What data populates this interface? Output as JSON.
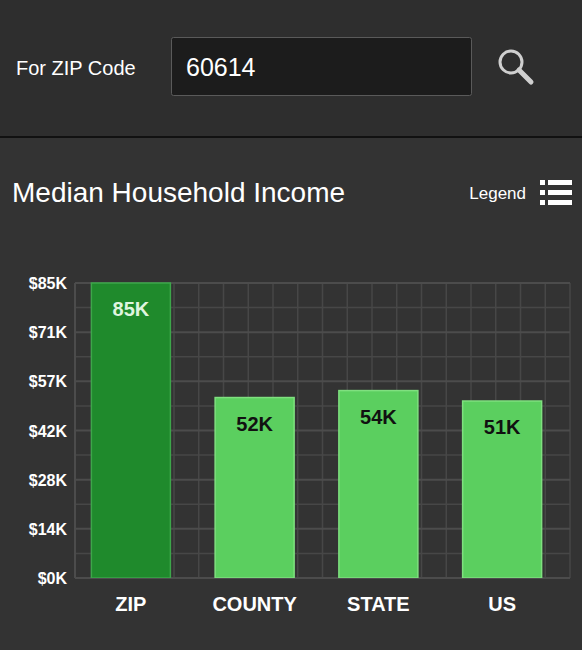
{
  "header": {
    "label": "For ZIP Code",
    "zip": "60614"
  },
  "legend_button": "Legend",
  "chart_data": {
    "type": "bar",
    "title": "Median Household Income",
    "categories": [
      "ZIP",
      "COUNTY",
      "STATE",
      "US"
    ],
    "values": [
      85,
      52,
      54,
      51
    ],
    "value_labels": [
      "85K",
      "52K",
      "54K",
      "51K"
    ],
    "colors": [
      "#1f8a2c",
      "#5bcf5f",
      "#5bcf5f",
      "#5bcf5f"
    ],
    "data_labels": true,
    "ylim": [
      0,
      85
    ],
    "yticks": [
      {
        "value": 0,
        "label": "$0K"
      },
      {
        "value": 14.17,
        "label": "$14K"
      },
      {
        "value": 28.33,
        "label": "$28K"
      },
      {
        "value": 42.5,
        "label": "$42K"
      },
      {
        "value": 56.67,
        "label": "$57K"
      },
      {
        "value": 70.83,
        "label": "$71K"
      },
      {
        "value": 85,
        "label": "$85K"
      }
    ],
    "grid": true
  }
}
